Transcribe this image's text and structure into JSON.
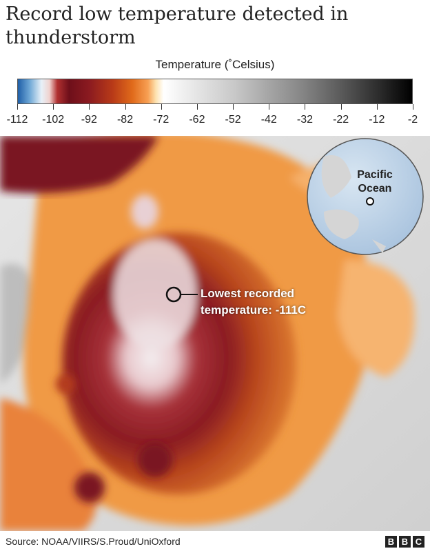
{
  "title": "Record low temperature detected in thunderstorm",
  "legend": {
    "label": "Temperature (˚Celsius)",
    "ticks": [
      "-112",
      "-102",
      "-92",
      "-82",
      "-72",
      "-62",
      "-52",
      "-42",
      "-32",
      "-22",
      "-12",
      "-2"
    ]
  },
  "annotation": {
    "line1": "Lowest recorded",
    "line2": "temperature: -111C"
  },
  "globe": {
    "line1": "Pacific",
    "line2": "Ocean"
  },
  "source": "Source: NOAA/VIIRS/S.Proud/UniOxford",
  "brand": [
    "B",
    "B",
    "C"
  ]
}
